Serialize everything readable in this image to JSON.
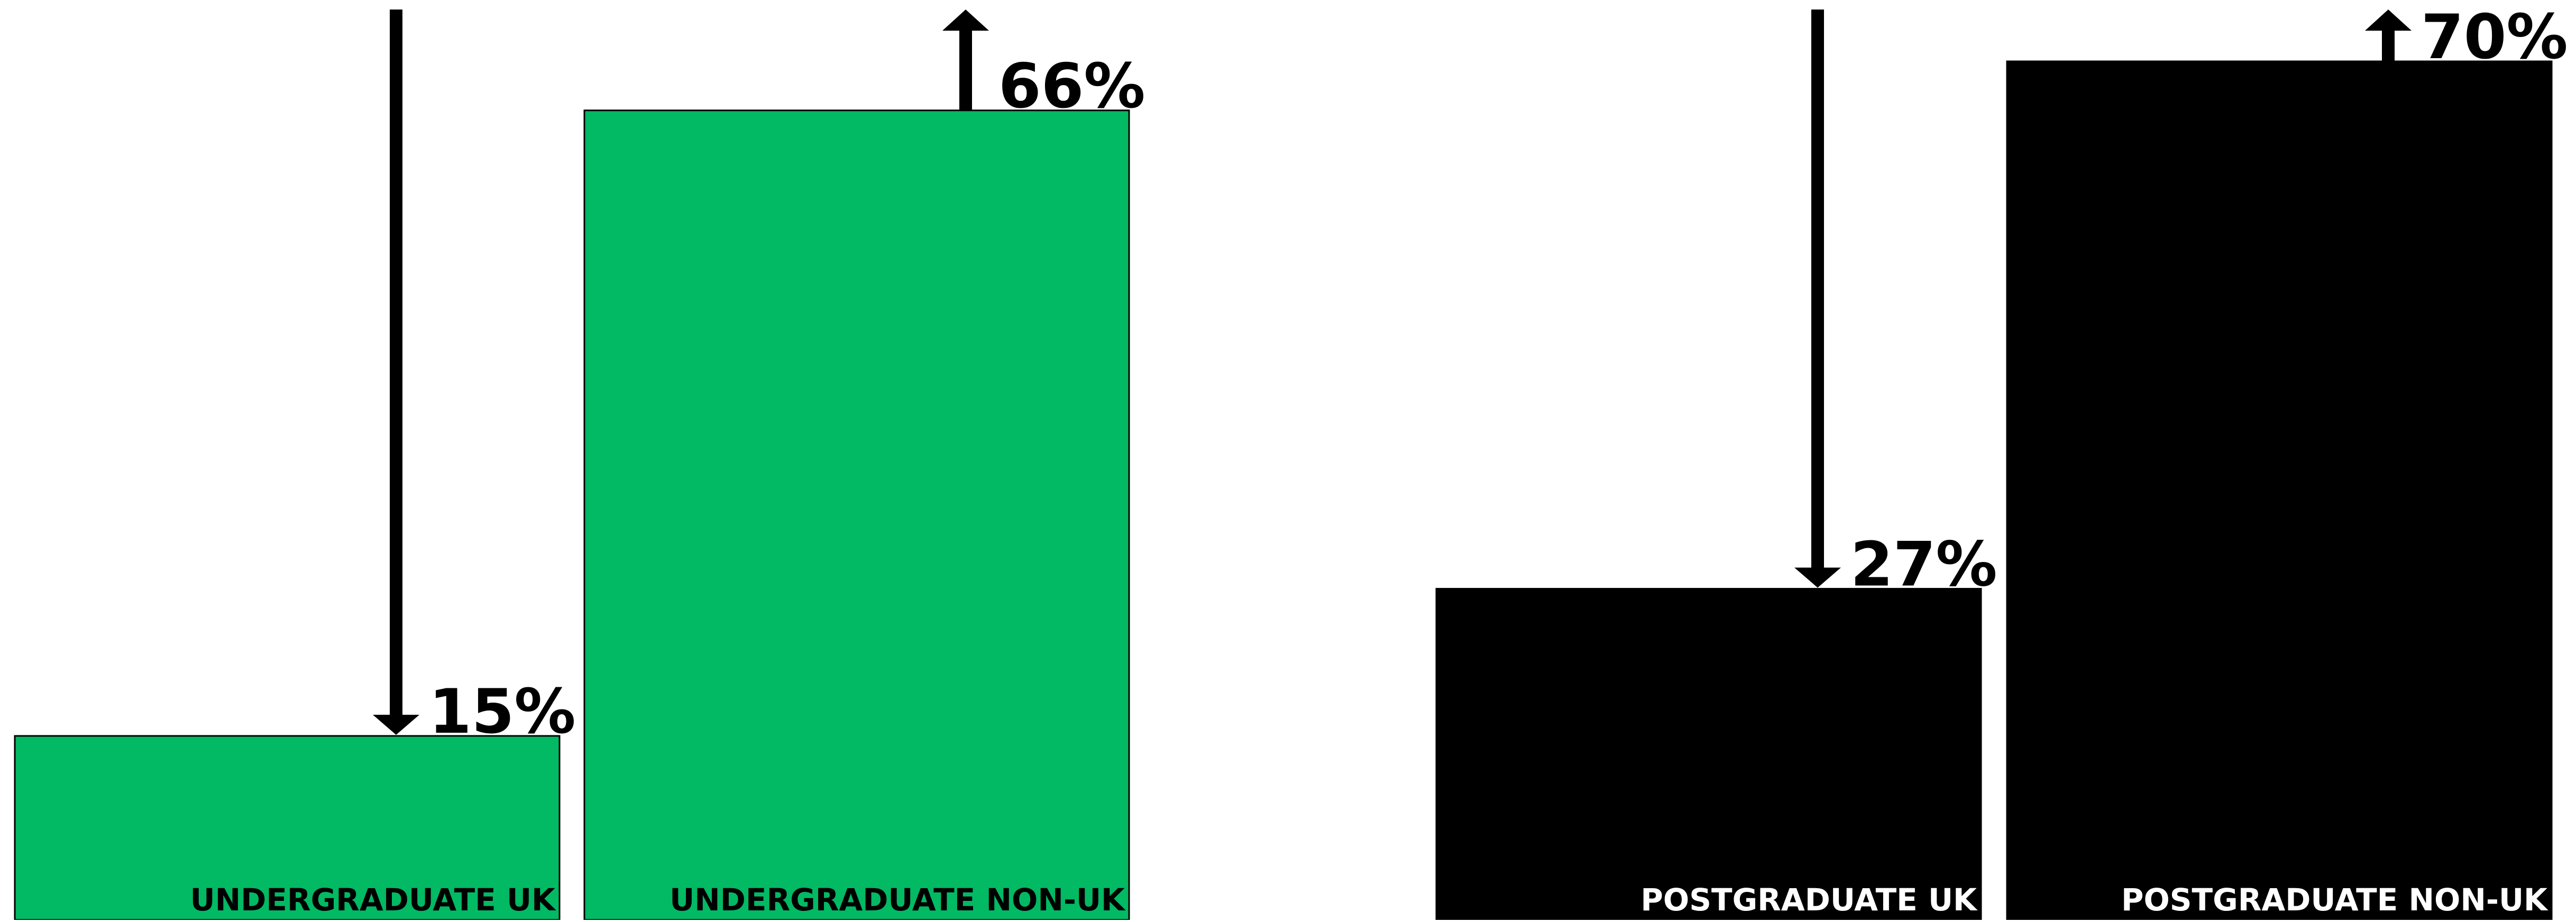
{
  "chart_data": {
    "type": "bar",
    "categories": [
      "UNDERGRADUATE UK",
      "UNDERGRADUATE NON-UK",
      "POSTGRADUATE UK",
      "POSTGRADUATE NON-UK"
    ],
    "values": [
      15,
      66,
      27,
      70
    ],
    "value_labels": [
      "15%",
      "66%",
      "27%",
      "70%"
    ],
    "direction": [
      "down",
      "up",
      "down",
      "up"
    ],
    "colors": [
      "#02b964",
      "#02b964",
      "#000000",
      "#000000"
    ],
    "label_colors": [
      "#000000",
      "#000000",
      "#ffffff",
      "#ffffff"
    ],
    "ylim": [
      0,
      75
    ],
    "grid": false,
    "title": "",
    "xlabel": "",
    "ylabel": ""
  }
}
